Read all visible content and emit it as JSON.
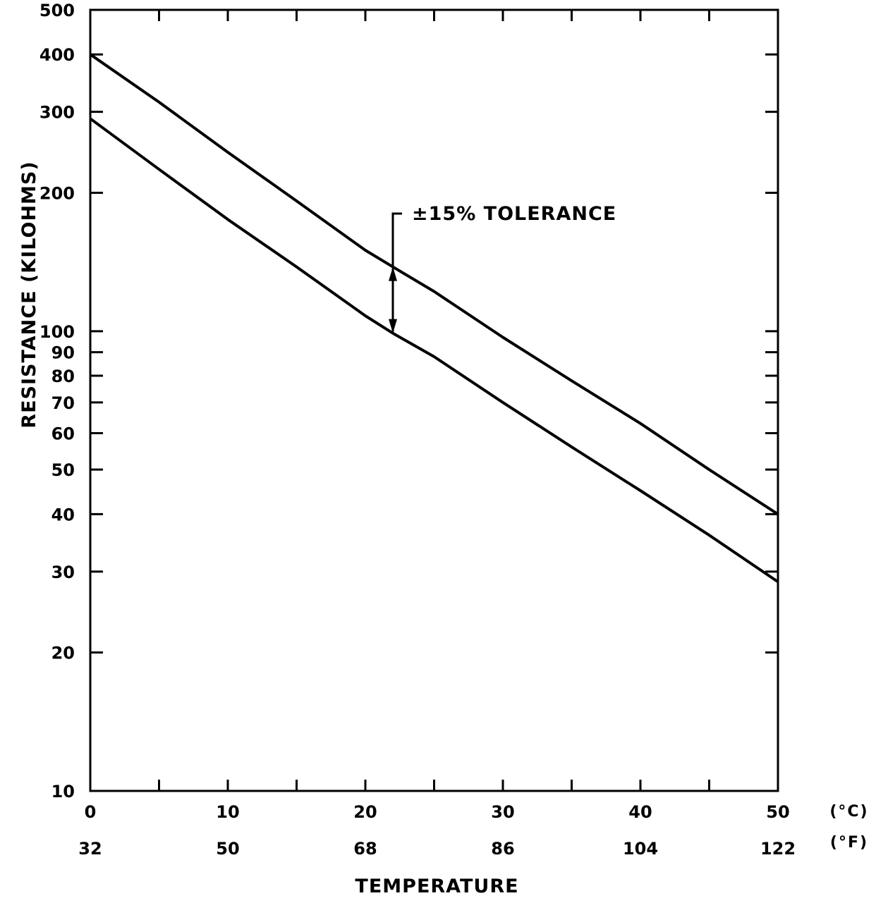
{
  "chart_data": {
    "type": "line",
    "title": "",
    "xlabel": "TEMPERATURE",
    "ylabel": "RESISTANCE (KILOHMS)",
    "y_scale": "log",
    "xlim": [
      0,
      50
    ],
    "ylim": [
      10,
      500
    ],
    "grid": false,
    "x_ticks": [
      0,
      5,
      10,
      15,
      20,
      25,
      30,
      35,
      40,
      45,
      50
    ],
    "x_tick_labels_c": [
      "0",
      "10",
      "20",
      "30",
      "40",
      "50"
    ],
    "x_tick_labels_f": [
      "32",
      "50",
      "68",
      "86",
      "104",
      "122"
    ],
    "x_label_values": [
      0,
      10,
      20,
      30,
      40,
      50
    ],
    "x_unit_c": "(°C)",
    "x_unit_f": "(°F)",
    "y_ticks": [
      10,
      20,
      30,
      40,
      50,
      60,
      70,
      80,
      90,
      100,
      200,
      300,
      400,
      500
    ],
    "y_tick_labels": [
      "10",
      "20",
      "30",
      "40",
      "50",
      "60",
      "70",
      "80",
      "90",
      "100",
      "200",
      "300",
      "400",
      "500"
    ],
    "series": [
      {
        "x": [
          0,
          5,
          10,
          15,
          20,
          22,
          25,
          30,
          35,
          40,
          45,
          50
        ],
        "y": [
          400,
          315,
          245,
          192,
          150,
          138,
          122,
          97,
          78,
          63,
          50,
          40
        ]
      },
      {
        "x": [
          0,
          5,
          10,
          15,
          20,
          22,
          25,
          30,
          35,
          40,
          45,
          50
        ],
        "y": [
          290,
          225,
          175,
          138,
          108,
          99,
          88,
          70,
          56,
          45,
          36,
          28.5
        ]
      }
    ],
    "annotations": [
      {
        "text": "±15% TOLERANCE",
        "x": 22,
        "y_top": 138,
        "y_bottom": 99
      }
    ]
  }
}
